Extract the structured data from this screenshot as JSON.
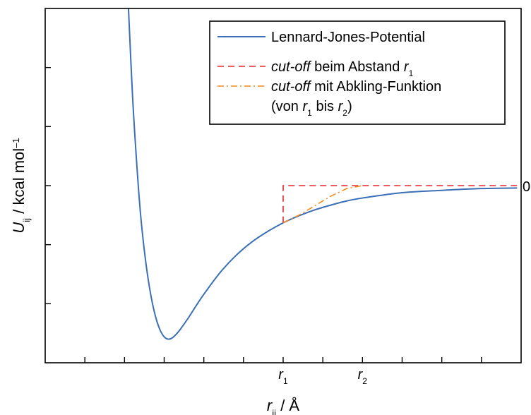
{
  "chart_data": {
    "type": "line",
    "title": "",
    "xlabel": {
      "var": "r",
      "sub": "ij",
      "unit": " / Å"
    },
    "ylabel": {
      "var": "U",
      "sub": "ij",
      "unit": " / kcal mol",
      "sup": "–1"
    },
    "xlim": [
      0,
      6.0
    ],
    "ylim": [
      -3.0,
      3.0
    ],
    "grid": false,
    "legend_position": "top-right",
    "x_tick_labels": [
      {
        "x": 3.0,
        "var": "r",
        "sub": "1"
      },
      {
        "x": 4.0,
        "var": "r",
        "sub": "2"
      }
    ],
    "y_tick_labels": [
      {
        "y": 0,
        "text": "0"
      }
    ],
    "x_minor_ticks": [
      0.5,
      1.0,
      1.5,
      2.0,
      2.5,
      3.0,
      3.5,
      4.0,
      4.5,
      5.0,
      5.5
    ],
    "y_minor_ticks": [
      -2.0,
      -1.0,
      0,
      1.0,
      2.0
    ],
    "series": [
      {
        "name": "Lennard-Jones-Potential",
        "color": "#3b6fb6",
        "style": "solid",
        "x": [
          1.05,
          1.1,
          1.15,
          1.2,
          1.25,
          1.3,
          1.35,
          1.4,
          1.45,
          1.5,
          1.55,
          1.6,
          1.65,
          1.7,
          1.8,
          1.9,
          2.0,
          2.2,
          2.4,
          2.6,
          2.8,
          3.0,
          3.2,
          3.4,
          3.6,
          3.8,
          4.0,
          4.5,
          5.0,
          5.5,
          5.95
        ],
        "y": [
          3.0,
          1.55,
          0.45,
          -0.45,
          -1.1,
          -1.6,
          -1.98,
          -2.26,
          -2.45,
          -2.56,
          -2.6,
          -2.58,
          -2.52,
          -2.44,
          -2.25,
          -2.04,
          -1.84,
          -1.48,
          -1.19,
          -0.96,
          -0.78,
          -0.63,
          -0.51,
          -0.41,
          -0.33,
          -0.26,
          -0.21,
          -0.12,
          -0.08,
          -0.05,
          -0.04
        ]
      },
      {
        "name": "cut-off beim Abstand r1",
        "legend": [
          {
            "text": "cut-off",
            "italic": true
          },
          {
            "text": " beim Abstand "
          },
          {
            "var": "r",
            "sub": "1"
          }
        ],
        "color": "#e8272a",
        "style": "dashed",
        "x": [
          3.0,
          3.0,
          6.0
        ],
        "y": [
          -0.63,
          0.0,
          0.0
        ]
      },
      {
        "name": "cut-off mit Abkling-Funktion (von r1 bis r2)",
        "legend": [
          {
            "text": "cut-off",
            "italic": true
          },
          {
            "text": " mit Abkling-Funktion"
          }
        ],
        "legend_line2": [
          {
            "text": "(von "
          },
          {
            "var": "r",
            "sub": "1"
          },
          {
            "text": " bis "
          },
          {
            "var": "r",
            "sub": "2"
          },
          {
            "text": ")"
          }
        ],
        "color": "#f28c1c",
        "style": "dashdot",
        "x": [
          3.0,
          3.2,
          3.4,
          3.6,
          3.8,
          4.0
        ],
        "y": [
          -0.63,
          -0.5,
          -0.34,
          -0.18,
          -0.05,
          0.0
        ]
      }
    ]
  }
}
